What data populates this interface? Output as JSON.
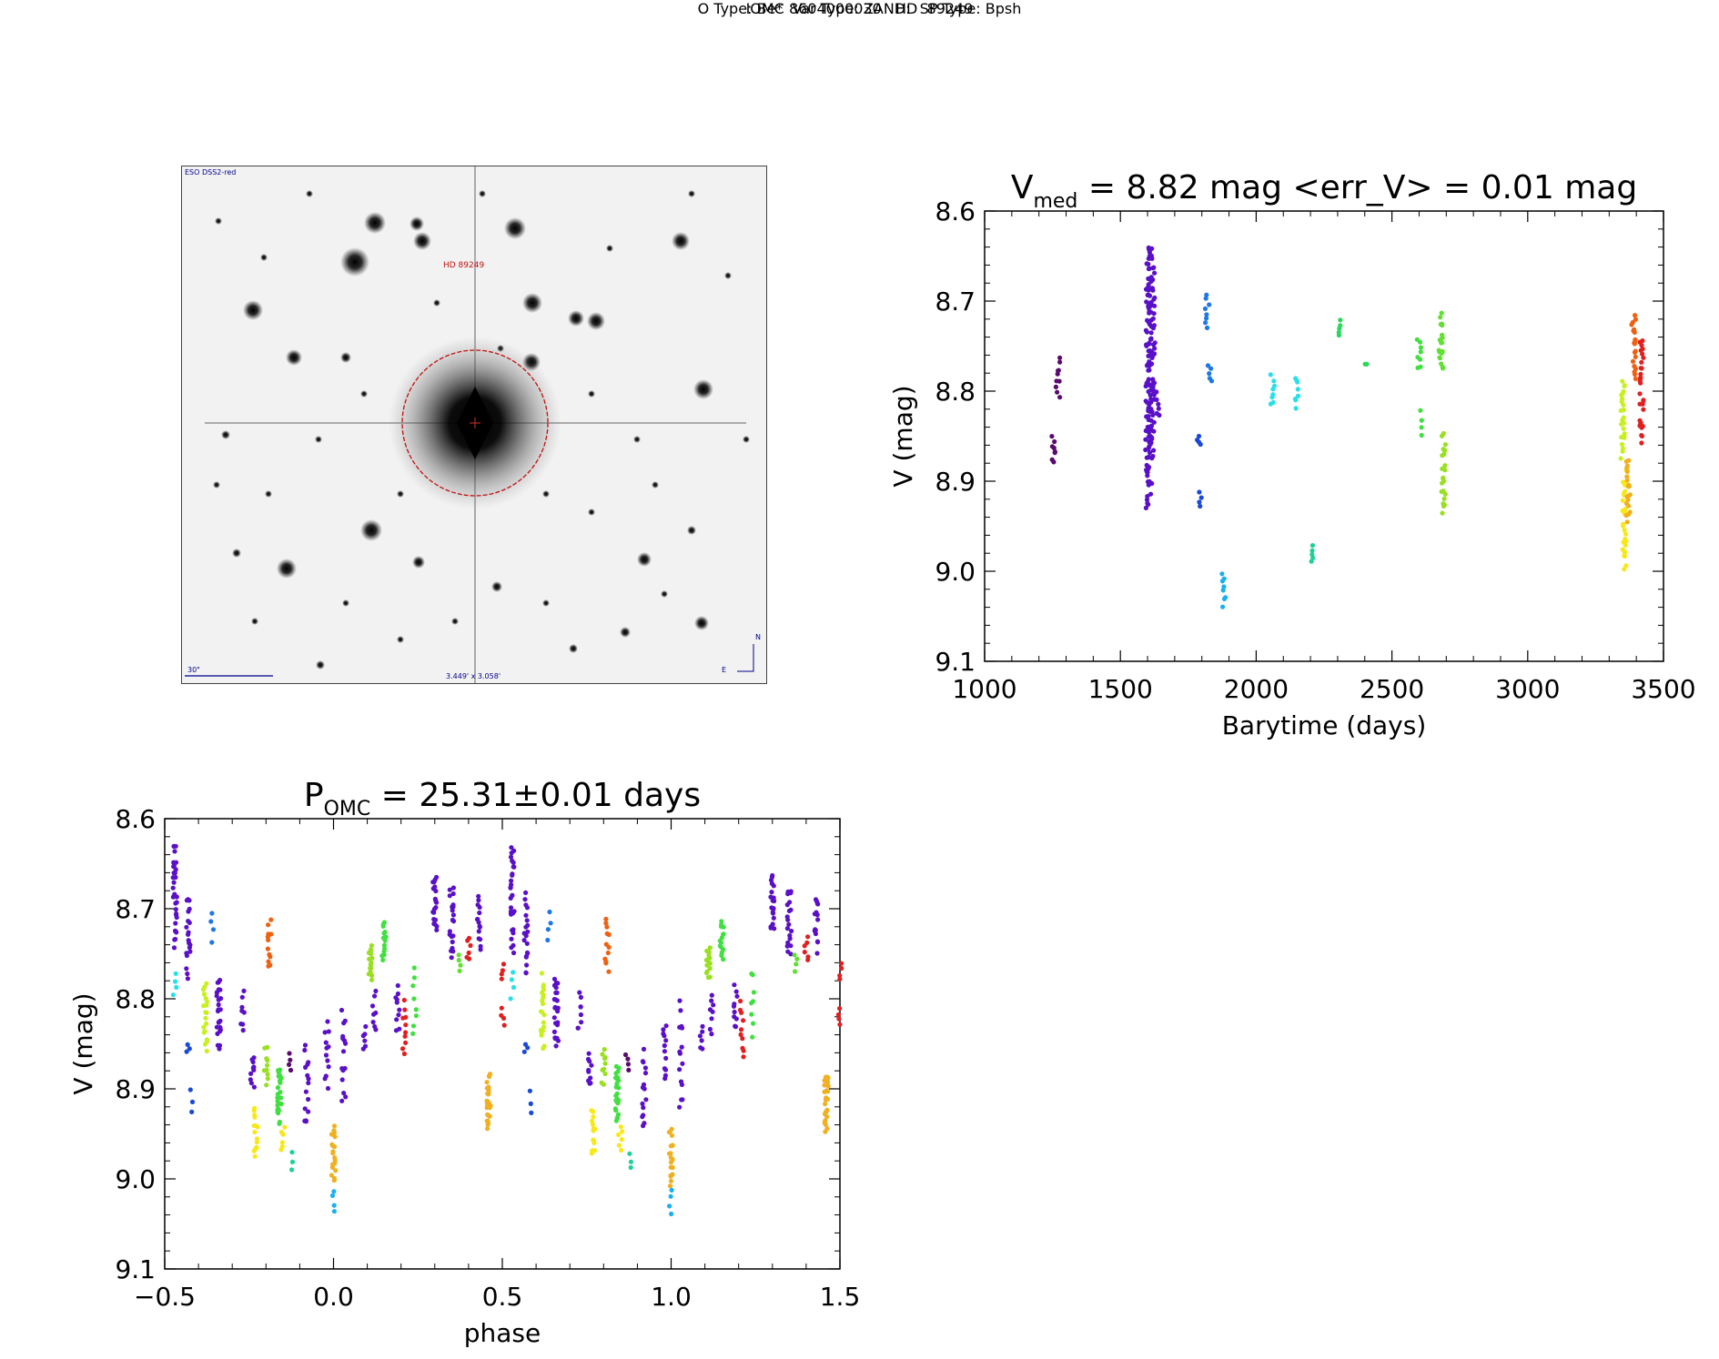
{
  "header": {
    "title_line1": "IOMC 8604000030   HD  89249",
    "title_line2": "O Type: Be*  Var Type: ZAND:  SP Type: Bpsh"
  },
  "finder_chart": {
    "survey_label": "ESO DSS2-red",
    "target_label": "HD 89249",
    "scale_label": "30\"",
    "fov_label": "3.449' x 3.058'",
    "north_label": "N",
    "east_label": "E"
  },
  "chart_data": [
    {
      "type": "scatter",
      "id": "lightcurve",
      "title_main": "V",
      "title_sub": "med",
      "title_rest": " = 8.82 mag <err_V> = 0.01 mag",
      "xlabel": "Barytime (days)",
      "ylabel": "V (mag)",
      "xlim": [
        1000,
        3500
      ],
      "ylim": [
        8.6,
        9.1
      ],
      "y_inverted": true,
      "xticks": [
        1000,
        1500,
        2000,
        2500,
        3000,
        3500
      ],
      "xtick_labels": [
        "1000",
        "1500",
        "2000",
        "2500",
        "3000",
        "3500"
      ],
      "yticks": [
        8.6,
        8.7,
        8.8,
        8.9,
        9.0,
        9.1
      ],
      "ytick_labels": [
        "8.6",
        "8.7",
        "8.8",
        "8.9",
        "9.0",
        "9.1"
      ],
      "groups": [
        {
          "x": 1255,
          "ymin": 8.85,
          "ymax": 8.88,
          "n": 8,
          "color": "#5a0a6e"
        },
        {
          "x": 1270,
          "ymin": 8.76,
          "ymax": 8.81,
          "n": 10,
          "color": "#5a0a6e"
        },
        {
          "x": 1600,
          "ymin": 8.64,
          "ymax": 8.95,
          "n": 60,
          "color": "#5a10c8"
        },
        {
          "x": 1610,
          "ymin": 8.62,
          "ymax": 8.92,
          "n": 60,
          "color": "#5a10c8"
        },
        {
          "x": 1620,
          "ymin": 8.64,
          "ymax": 8.88,
          "n": 50,
          "color": "#5a10c8"
        },
        {
          "x": 1640,
          "ymin": 8.8,
          "ymax": 8.83,
          "n": 6,
          "color": "#5a10c8"
        },
        {
          "x": 1790,
          "ymin": 8.85,
          "ymax": 8.86,
          "n": 4,
          "color": "#1a48d8"
        },
        {
          "x": 1795,
          "ymin": 8.91,
          "ymax": 8.93,
          "n": 4,
          "color": "#1a48d8"
        },
        {
          "x": 1820,
          "ymin": 8.69,
          "ymax": 8.73,
          "n": 8,
          "color": "#1e78e8"
        },
        {
          "x": 1830,
          "ymin": 8.77,
          "ymax": 8.79,
          "n": 5,
          "color": "#1e78e8"
        },
        {
          "x": 1880,
          "ymin": 9.0,
          "ymax": 9.04,
          "n": 8,
          "color": "#1ab0f0"
        },
        {
          "x": 2060,
          "ymin": 8.78,
          "ymax": 8.82,
          "n": 8,
          "color": "#28e0e8"
        },
        {
          "x": 2150,
          "ymin": 8.78,
          "ymax": 8.82,
          "n": 8,
          "color": "#28e0e8"
        },
        {
          "x": 2210,
          "ymin": 8.97,
          "ymax": 8.99,
          "n": 5,
          "color": "#20d098"
        },
        {
          "x": 2310,
          "ymin": 8.72,
          "ymax": 8.74,
          "n": 5,
          "color": "#28d858"
        },
        {
          "x": 2400,
          "ymin": 8.77,
          "ymax": 8.77,
          "n": 3,
          "color": "#28d858"
        },
        {
          "x": 2600,
          "ymin": 8.74,
          "ymax": 8.78,
          "n": 8,
          "color": "#40e040"
        },
        {
          "x": 2605,
          "ymin": 8.82,
          "ymax": 8.85,
          "n": 4,
          "color": "#40e040"
        },
        {
          "x": 2680,
          "ymin": 8.71,
          "ymax": 8.78,
          "n": 20,
          "color": "#60e030"
        },
        {
          "x": 2690,
          "ymin": 8.84,
          "ymax": 8.94,
          "n": 24,
          "color": "#98e020"
        },
        {
          "x": 3350,
          "ymin": 8.78,
          "ymax": 8.88,
          "n": 24,
          "color": "#c8f020"
        },
        {
          "x": 3355,
          "ymin": 8.88,
          "ymax": 9.01,
          "n": 30,
          "color": "#f8e818"
        },
        {
          "x": 3370,
          "ymin": 8.87,
          "ymax": 8.95,
          "n": 20,
          "color": "#f0b020"
        },
        {
          "x": 3390,
          "ymin": 8.71,
          "ymax": 8.79,
          "n": 20,
          "color": "#f06010"
        },
        {
          "x": 3420,
          "ymin": 8.73,
          "ymax": 8.87,
          "n": 30,
          "color": "#e02020"
        }
      ]
    },
    {
      "type": "scatter",
      "id": "phased",
      "title_main": "P",
      "title_sub": "OMC",
      "title_rest": " = 25.31±0.01 days",
      "xlabel": "phase",
      "ylabel": "V (mag)",
      "xlim": [
        -0.5,
        1.5
      ],
      "ylim": [
        8.6,
        9.1
      ],
      "y_inverted": true,
      "xticks": [
        -0.5,
        0.0,
        0.5,
        1.0,
        1.5
      ],
      "xtick_labels": [
        "−0.5",
        "0.0",
        "0.5",
        "1.0",
        "1.5"
      ],
      "yticks": [
        8.6,
        8.7,
        8.8,
        8.9,
        9.0,
        9.1
      ],
      "ytick_labels": [
        "8.6",
        "8.7",
        "8.8",
        "8.9",
        "9.0",
        "9.1"
      ],
      "groups": [
        {
          "x": -0.47,
          "ymin": 8.62,
          "ymax": 8.75,
          "n": 30,
          "color": "#5a10c8"
        },
        {
          "x": -0.43,
          "ymin": 8.68,
          "ymax": 8.78,
          "n": 20,
          "color": "#5a10c8"
        },
        {
          "x": -0.47,
          "ymin": 8.77,
          "ymax": 8.8,
          "n": 4,
          "color": "#28e0e8"
        },
        {
          "x": -0.43,
          "ymin": 8.85,
          "ymax": 8.86,
          "n": 3,
          "color": "#1a48d8"
        },
        {
          "x": -0.42,
          "ymin": 8.9,
          "ymax": 8.93,
          "n": 3,
          "color": "#1a48d8"
        },
        {
          "x": -0.36,
          "ymin": 8.7,
          "ymax": 8.74,
          "n": 4,
          "color": "#1e78e8"
        },
        {
          "x": -0.38,
          "ymin": 8.77,
          "ymax": 8.86,
          "n": 20,
          "color": "#c8f020"
        },
        {
          "x": -0.34,
          "ymin": 8.77,
          "ymax": 8.86,
          "n": 25,
          "color": "#5a10c8"
        },
        {
          "x": -0.27,
          "ymin": 8.79,
          "ymax": 8.84,
          "n": 8,
          "color": "#5a10c8"
        },
        {
          "x": -0.19,
          "ymin": 8.71,
          "ymax": 8.77,
          "n": 12,
          "color": "#f06010"
        },
        {
          "x": -0.23,
          "ymin": 8.92,
          "ymax": 8.98,
          "n": 15,
          "color": "#f8e818"
        },
        {
          "x": -0.24,
          "ymin": 8.86,
          "ymax": 8.9,
          "n": 10,
          "color": "#5a10c8"
        },
        {
          "x": -0.2,
          "ymin": 8.85,
          "ymax": 8.9,
          "n": 10,
          "color": "#98e020"
        },
        {
          "x": -0.16,
          "ymin": 8.87,
          "ymax": 8.94,
          "n": 25,
          "color": "#40e040"
        },
        {
          "x": -0.15,
          "ymin": 8.94,
          "ymax": 8.97,
          "n": 6,
          "color": "#f8e818"
        },
        {
          "x": -0.12,
          "ymin": 8.97,
          "ymax": 8.99,
          "n": 3,
          "color": "#20d098"
        },
        {
          "x": -0.13,
          "ymin": 8.86,
          "ymax": 8.88,
          "n": 4,
          "color": "#5a0a6e"
        },
        {
          "x": -0.08,
          "ymin": 8.85,
          "ymax": 8.95,
          "n": 15,
          "color": "#5a10c8"
        },
        {
          "x": -0.02,
          "ymin": 8.82,
          "ymax": 8.9,
          "n": 12,
          "color": "#5a10c8"
        },
        {
          "x": 0.0,
          "ymin": 8.94,
          "ymax": 9.01,
          "n": 20,
          "color": "#f0b020"
        },
        {
          "x": 0.0,
          "ymin": 9.01,
          "ymax": 9.04,
          "n": 4,
          "color": "#1ab0f0"
        },
        {
          "x": 0.03,
          "ymin": 8.8,
          "ymax": 8.93,
          "n": 15,
          "color": "#5a10c8"
        },
        {
          "x": 0.09,
          "ymin": 8.83,
          "ymax": 8.86,
          "n": 6,
          "color": "#5a10c8"
        },
        {
          "x": 0.11,
          "ymin": 8.74,
          "ymax": 8.78,
          "n": 15,
          "color": "#98e020"
        },
        {
          "x": 0.15,
          "ymin": 8.71,
          "ymax": 8.76,
          "n": 15,
          "color": "#40e040"
        },
        {
          "x": 0.12,
          "ymin": 8.79,
          "ymax": 8.84,
          "n": 8,
          "color": "#5a10c8"
        },
        {
          "x": 0.19,
          "ymin": 8.78,
          "ymax": 8.84,
          "n": 10,
          "color": "#5a10c8"
        },
        {
          "x": 0.21,
          "ymin": 8.8,
          "ymax": 8.87,
          "n": 10,
          "color": "#e02020"
        },
        {
          "x": 0.24,
          "ymin": 8.76,
          "ymax": 8.85,
          "n": 8,
          "color": "#40e040"
        },
        {
          "x": 0.3,
          "ymin": 8.66,
          "ymax": 8.73,
          "n": 20,
          "color": "#5a10c8"
        },
        {
          "x": 0.35,
          "ymin": 8.67,
          "ymax": 8.76,
          "n": 20,
          "color": "#5a10c8"
        },
        {
          "x": 0.37,
          "ymin": 8.75,
          "ymax": 8.77,
          "n": 4,
          "color": "#60e030"
        },
        {
          "x": 0.4,
          "ymin": 8.73,
          "ymax": 8.76,
          "n": 6,
          "color": "#e02020"
        },
        {
          "x": 0.43,
          "ymin": 8.68,
          "ymax": 8.75,
          "n": 15,
          "color": "#5a10c8"
        },
        {
          "x": 0.46,
          "ymin": 8.88,
          "ymax": 8.95,
          "n": 25,
          "color": "#f0b020"
        },
        {
          "x": 0.5,
          "ymin": 8.76,
          "ymax": 8.78,
          "n": 4,
          "color": "#e02020"
        },
        {
          "x": 0.5,
          "ymin": 8.81,
          "ymax": 8.83,
          "n": 4,
          "color": "#e02020"
        }
      ]
    }
  ]
}
